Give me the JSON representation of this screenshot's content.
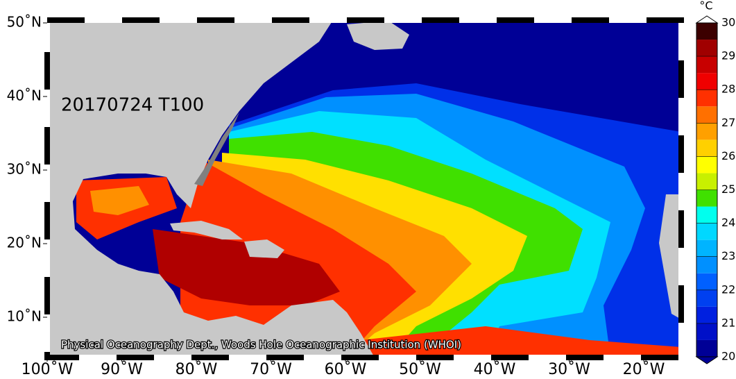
{
  "map": {
    "title": "20170724 T100",
    "credit": "Physical Oceanography Dept., Woods Hole Oceanographic Institution (WHOI)",
    "lon_ticks": [
      {
        "value": -100,
        "label": "100˚W"
      },
      {
        "value": -90,
        "label": "90˚W"
      },
      {
        "value": -80,
        "label": "80˚W"
      },
      {
        "value": -70,
        "label": "70˚W"
      },
      {
        "value": -60,
        "label": "60˚W"
      },
      {
        "value": -50,
        "label": "50˚W"
      },
      {
        "value": -40,
        "label": "40˚W"
      },
      {
        "value": -30,
        "label": "30˚W"
      },
      {
        "value": -20,
        "label": "20˚W"
      }
    ],
    "lat_ticks": [
      {
        "value": 50,
        "label": "50˚N"
      },
      {
        "value": 40,
        "label": "40˚N"
      },
      {
        "value": 30,
        "label": "30˚N"
      },
      {
        "value": 20,
        "label": "20˚N"
      },
      {
        "value": 10,
        "label": "10˚N"
      }
    ],
    "colorbar": {
      "unit": "°C",
      "ticks": [
        20,
        21,
        22,
        23,
        24,
        25,
        26,
        27,
        28,
        29,
        30
      ],
      "colors": [
        "#000096",
        "#0010c8",
        "#0020e0",
        "#0040f0",
        "#0060ff",
        "#0090ff",
        "#00b4ff",
        "#00d8ff",
        "#00ffee",
        "#40e000",
        "#c8f000",
        "#ffff00",
        "#ffd000",
        "#ffa000",
        "#ff7000",
        "#ff3000",
        "#f00000",
        "#c80000",
        "#a00000",
        "#3c0000"
      ]
    }
  }
}
